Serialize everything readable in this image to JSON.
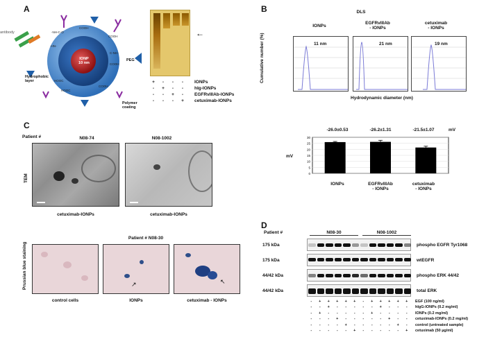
{
  "panelA": {
    "letter": "A",
    "np_core_label": "IONP\n10 nm",
    "peg": "PEG",
    "hydrophobic": "Hydrophobic\nlayer",
    "polymer": "Polymer\ncoating",
    "antibody_label": "antibody",
    "gel_legend": {
      "rows": [
        "IONPs",
        "hIg-IONPs",
        "EGFRvIIIAb-IONPs",
        "cetuximab-IONPs"
      ],
      "signs": [
        [
          "+",
          "-",
          "-",
          "-"
        ],
        [
          "-",
          "+",
          "-",
          "-"
        ],
        [
          "-",
          "-",
          "+",
          "-"
        ],
        [
          "-",
          "-",
          "-",
          "+"
        ]
      ]
    }
  },
  "panelB": {
    "letter": "B",
    "title": "DLS",
    "ylabel": "Cumulative number (%)",
    "xlabel": "Hydrodynamic diameter (nm)",
    "plots": [
      {
        "title": "IONPs",
        "size": "11 nm"
      },
      {
        "title": "EGFRvIIIAb\n- IONPs",
        "size": "21 nm"
      },
      {
        "title": "cetuximab\n- IONPs",
        "size": "19 nm"
      }
    ]
  },
  "panelC": {
    "letter": "C",
    "patient_label": "Patient #",
    "tem_cols": [
      "N08-74",
      "N08-1002"
    ],
    "tem_row_label": "TEM",
    "tem_captions": [
      "cetuximab-IONPs",
      "cetuximab-IONPs"
    ],
    "pb_title": "Patient  # N08-30",
    "pb_row_label": "Prussian blue staining",
    "pb_captions": [
      "control cells",
      "IONPs",
      "cetuximab - IONPs"
    ]
  },
  "zeta": {
    "unit": "mV",
    "ylabel": "mV",
    "values_text": [
      "-26.0±0.53",
      "-26.2±1.31",
      "-21.5±1.07"
    ],
    "unit_label": "mV",
    "categories": [
      "IONPs",
      "EGFRvIIIAb\n- IONPs",
      "cetuximab\n- IONPs"
    ]
  },
  "chart_data": {
    "type": "bar",
    "categories": [
      "IONPs",
      "EGFRvIIIAb - IONPs",
      "cetuximab - IONPs"
    ],
    "values": [
      26.0,
      26.2,
      21.5
    ],
    "errors": [
      0.53,
      1.31,
      1.07
    ],
    "ylabel": "mV",
    "ylim": [
      0,
      30
    ],
    "ytick_labels": [
      "0",
      "5",
      "10",
      "15",
      "20",
      "25",
      "30"
    ]
  },
  "panelD": {
    "letter": "D",
    "patient_label": "Patient #",
    "groups": [
      "N08-30",
      "N08-1002"
    ],
    "rows": [
      {
        "kda": "175 kDa",
        "label": "phospho EGFR Tyr1068"
      },
      {
        "kda": "175 kDa",
        "label": "wtEGFR"
      },
      {
        "kda": "44/42 kDa",
        "label": "phospho ERK 44/42"
      },
      {
        "kda": "44/42 kDa",
        "label": "total ERK"
      }
    ],
    "conditions": [
      {
        "label": "EGF (100 ng/ml)",
        "signs": [
          "-",
          "+",
          "+",
          "+",
          "+",
          "+",
          "-",
          "+",
          "+",
          "+",
          "+",
          "+"
        ]
      },
      {
        "label": "hIgG-IONPs (0.2 mg/ml)",
        "signs": [
          "-",
          "-",
          "+",
          "-",
          "-",
          "-",
          "-",
          "-",
          "+",
          "-",
          "-",
          "-"
        ]
      },
      {
        "label": "IONPs (0.2 mg/ml)",
        "signs": [
          "-",
          "+",
          "-",
          "-",
          "-",
          "-",
          "-",
          "+",
          "-",
          "-",
          "-",
          "-"
        ]
      },
      {
        "label": "cetuximab-IONPs (0.2 mg/ml)",
        "signs": [
          "-",
          "-",
          "-",
          "+",
          "-",
          "-",
          "-",
          "-",
          "-",
          "+",
          "-",
          "-"
        ]
      },
      {
        "label": "control (untreated sample)",
        "signs": [
          "-",
          "-",
          "-",
          "-",
          "+",
          "-",
          "-",
          "-",
          "-",
          "-",
          "+",
          "-"
        ]
      },
      {
        "label": "cetuximab (50 µg/ml)",
        "signs": [
          "-",
          "-",
          "-",
          "-",
          "-",
          "+",
          "-",
          "-",
          "-",
          "-",
          "-",
          "+"
        ]
      }
    ]
  }
}
